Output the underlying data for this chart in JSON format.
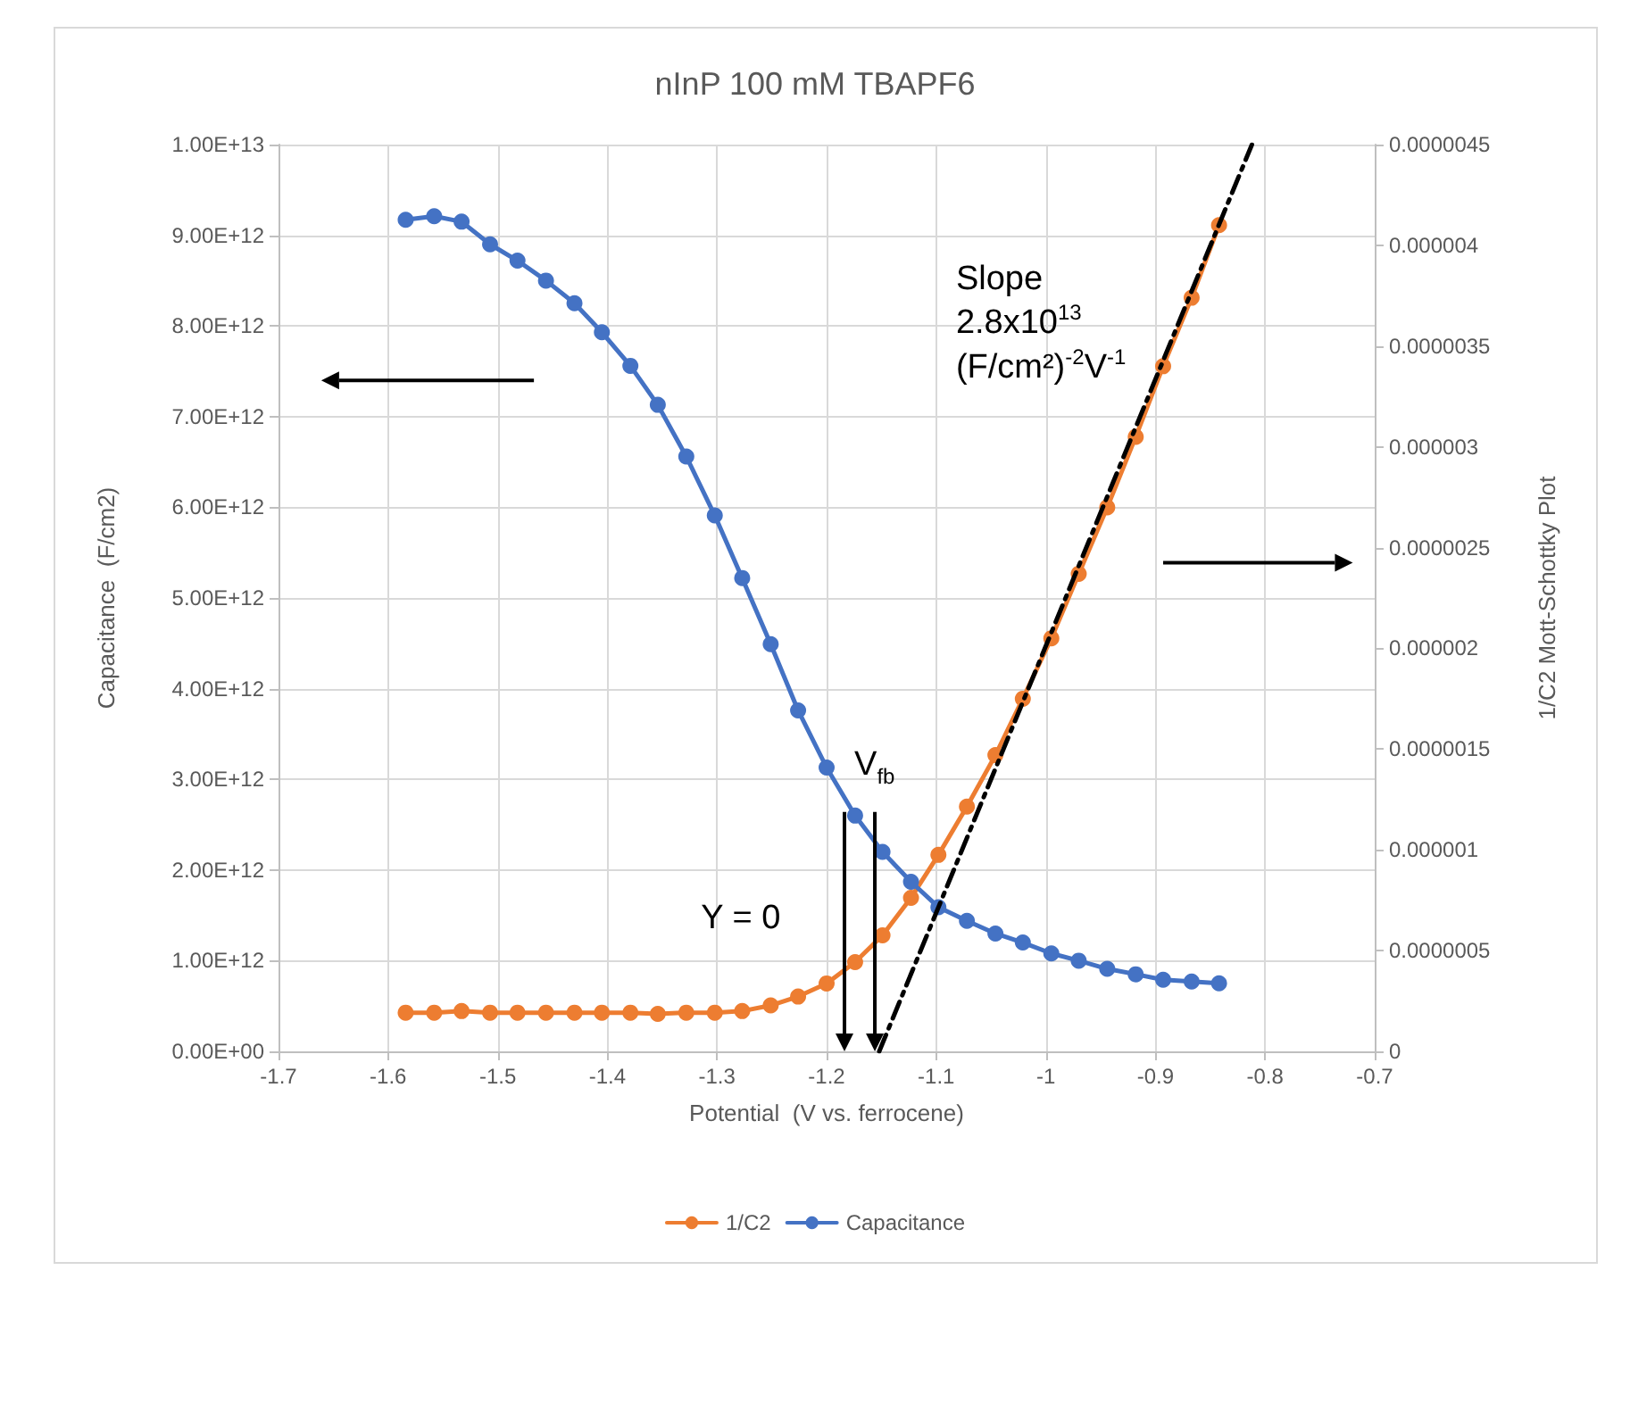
{
  "chart_data": {
    "type": "line",
    "title": "nInP 100 mM TBAPF6",
    "xlabel": "Potential  (V vs. ferrocene)",
    "ylabel": "Capacitance  (F/cm2)",
    "y2label": "1/C2 Mott-Schottky Plot",
    "x": [
      -1.584,
      -1.558,
      -1.533,
      -1.507,
      -1.482,
      -1.456,
      -1.43,
      -1.405,
      -1.379,
      -1.354,
      -1.328,
      -1.302,
      -1.277,
      -1.251,
      -1.226,
      -1.2,
      -1.174,
      -1.149,
      -1.123,
      -1.098,
      -1.072,
      -1.046,
      -1.021,
      -0.995,
      -0.97,
      -0.944,
      -0.918,
      -0.893,
      -0.867,
      -0.842
    ],
    "series": [
      {
        "name": "1/C2",
        "color": "#ed7d31",
        "axis": "y2",
        "values": [
          1.92e-07,
          1.92e-07,
          2e-07,
          1.92e-07,
          1.92e-07,
          1.92e-07,
          1.92e-07,
          1.92e-07,
          1.92e-07,
          1.86e-07,
          1.92e-07,
          1.92e-07,
          2e-07,
          2.28e-07,
          2.72e-07,
          3.37e-07,
          4.43e-07,
          5.76e-07,
          7.62e-07,
          9.75e-07,
          1.215e-06,
          1.47e-06,
          1.75e-06,
          2.05e-06,
          2.37e-06,
          2.7e-06,
          3.05e-06,
          3.4e-06,
          3.74e-06,
          4.1e-06
        ]
      },
      {
        "name": "Capacitance",
        "color": "#4472c4",
        "values": [
          9170000000000.0,
          9210000000000.0,
          9150000000000.0,
          8900000000000.0,
          8720000000000.0,
          8500000000000.0,
          8250000000000.0,
          7930000000000.0,
          7560000000000.0,
          7130000000000.0,
          6560000000000.0,
          5910000000000.0,
          5220000000000.0,
          4490000000000.0,
          3760000000000.0,
          3130000000000.0,
          2600000000000.0,
          2200000000000.0,
          1870000000000.0,
          1590000000000.0,
          1440000000000.0,
          1300000000000.0,
          1200000000000.0,
          1080000000000.0,
          1000000000000.0,
          910000000000.0,
          850000000000.0,
          790000000000.0,
          770000000000.0,
          750000000000.0
        ]
      },
      {
        "type": "line",
        "axis": "y2",
        "color": "#000000",
        "line_style": "dashed",
        "marker": "none",
        "x": [
          -1.152,
          -0.812
        ],
        "values": [
          0,
          4.5e-06
        ]
      }
    ],
    "marker": "circle",
    "line_style": "solid",
    "grid": true,
    "legend": "bottom",
    "xlim": [
      -1.7,
      -0.7
    ],
    "xticks": [
      -1.7,
      -1.6,
      -1.5,
      -1.4,
      -1.3,
      -1.2,
      -1.1,
      -1,
      -0.9,
      -0.8,
      -0.7
    ],
    "ylim": [
      0,
      10000000000000.0
    ],
    "yticks": [
      {
        "value": 0,
        "label": "0.00E+00"
      },
      {
        "value": 1000000000000.0,
        "label": "1.00E+12"
      },
      {
        "value": 2000000000000.0,
        "label": "2.00E+12"
      },
      {
        "value": 3000000000000.0,
        "label": "3.00E+12"
      },
      {
        "value": 4000000000000.0,
        "label": "4.00E+12"
      },
      {
        "value": 5000000000000.0,
        "label": "5.00E+12"
      },
      {
        "value": 6000000000000.0,
        "label": "6.00E+12"
      },
      {
        "value": 7000000000000.0,
        "label": "7.00E+12"
      },
      {
        "value": 8000000000000.0,
        "label": "8.00E+12"
      },
      {
        "value": 9000000000000.0,
        "label": "9.00E+12"
      },
      {
        "value": 10000000000000.0,
        "label": "1.00E+13"
      }
    ],
    "y2lim": [
      0,
      4.5e-06
    ],
    "y2ticks": [
      {
        "value": 0,
        "label": "0"
      },
      {
        "value": 5e-07,
        "label": "0.0000005"
      },
      {
        "value": 1e-06,
        "label": "0.000001"
      },
      {
        "value": 1.5e-06,
        "label": "0.0000015"
      },
      {
        "value": 2e-06,
        "label": "0.000002"
      },
      {
        "value": 2.5e-06,
        "label": "0.0000025"
      },
      {
        "value": 3e-06,
        "label": "0.000003"
      },
      {
        "value": 3.5e-06,
        "label": "0.0000035"
      },
      {
        "value": 4e-06,
        "label": "0.000004"
      },
      {
        "value": 4.5e-06,
        "label": "0.0000045"
      }
    ],
    "annotations": [
      "Slope\n2.8x10$^{13}$\n(F/cm²)$^{-2}$V$^{-1}$",
      "Y = 0",
      "V$_{fb}$"
    ]
  }
}
